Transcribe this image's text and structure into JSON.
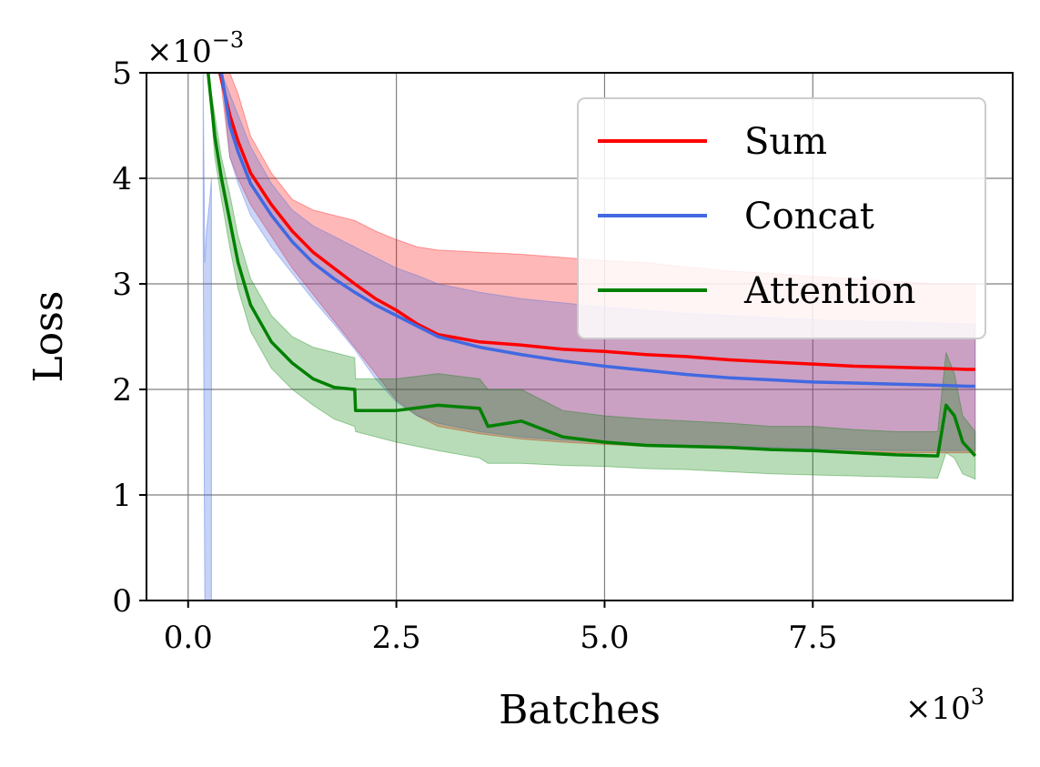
{
  "chart_data": {
    "type": "line",
    "title": "",
    "xlabel": "Batches",
    "ylabel": "Loss",
    "x_scale_label": "×10",
    "x_scale_exp": "3",
    "y_scale_label": "×10",
    "y_scale_exp": "−3",
    "xlim": [
      -0.5,
      9.9
    ],
    "ylim": [
      0,
      5
    ],
    "x_ticks": [
      0.0,
      2.5,
      5.0,
      7.5
    ],
    "x_tick_labels": [
      "0.0",
      "2.5",
      "5.0",
      "7.5"
    ],
    "y_ticks": [
      0,
      1,
      2,
      3,
      4,
      5
    ],
    "y_tick_labels": [
      "0",
      "1",
      "2",
      "3",
      "4",
      "5"
    ],
    "grid": true,
    "legend_position": "top-right",
    "series": [
      {
        "name": "Sum",
        "color": "#ff0000",
        "x": [
          0.38,
          0.5,
          0.6,
          0.75,
          1.0,
          1.25,
          1.5,
          1.75,
          2.0,
          2.25,
          2.5,
          2.75,
          3.0,
          3.5,
          4.0,
          4.5,
          5.0,
          5.5,
          6.0,
          6.5,
          7.0,
          7.5,
          8.0,
          8.5,
          9.0,
          9.35,
          9.45
        ],
        "values": [
          5.0,
          4.6,
          4.35,
          4.05,
          3.75,
          3.5,
          3.3,
          3.15,
          3.0,
          2.86,
          2.75,
          2.62,
          2.52,
          2.45,
          2.42,
          2.38,
          2.36,
          2.33,
          2.31,
          2.28,
          2.26,
          2.24,
          2.22,
          2.21,
          2.2,
          2.19,
          2.19
        ],
        "upper": [
          5.0,
          5.0,
          4.8,
          4.4,
          4.05,
          3.8,
          3.7,
          3.65,
          3.6,
          3.5,
          3.42,
          3.35,
          3.32,
          3.3,
          3.28,
          3.25,
          3.22,
          3.2,
          3.16,
          3.12,
          3.1,
          3.07,
          3.05,
          3.02,
          3.0,
          3.0,
          3.0
        ],
        "lower": [
          5.0,
          4.2,
          4.0,
          3.75,
          3.45,
          3.15,
          2.9,
          2.65,
          2.4,
          2.15,
          1.9,
          1.75,
          1.65,
          1.58,
          1.53,
          1.5,
          1.48,
          1.46,
          1.45,
          1.44,
          1.43,
          1.42,
          1.41,
          1.4,
          1.4,
          1.4,
          1.4
        ]
      },
      {
        "name": "Concat",
        "color": "#4169e1",
        "x": [
          0.4,
          0.5,
          0.6,
          0.75,
          1.0,
          1.25,
          1.5,
          1.75,
          2.0,
          2.25,
          2.5,
          2.75,
          3.0,
          3.5,
          4.0,
          4.5,
          5.0,
          5.5,
          6.0,
          6.5,
          7.0,
          7.5,
          8.0,
          8.5,
          9.0,
          9.35,
          9.45
        ],
        "values": [
          5.0,
          4.5,
          4.25,
          3.95,
          3.65,
          3.4,
          3.2,
          3.05,
          2.92,
          2.8,
          2.7,
          2.6,
          2.5,
          2.4,
          2.33,
          2.27,
          2.22,
          2.18,
          2.14,
          2.11,
          2.09,
          2.07,
          2.06,
          2.05,
          2.04,
          2.03,
          2.03
        ],
        "upper": [
          5.0,
          4.8,
          4.6,
          4.3,
          3.95,
          3.7,
          3.55,
          3.45,
          3.35,
          3.25,
          3.15,
          3.08,
          3.0,
          2.92,
          2.86,
          2.82,
          2.78,
          2.75,
          2.72,
          2.7,
          2.68,
          2.66,
          2.65,
          2.64,
          2.63,
          2.62,
          2.62
        ],
        "lower": [
          5.0,
          4.2,
          3.95,
          3.65,
          3.35,
          3.1,
          2.85,
          2.62,
          2.38,
          2.1,
          1.88,
          1.75,
          1.68,
          1.6,
          1.55,
          1.52,
          1.5,
          1.48,
          1.47,
          1.46,
          1.45,
          1.44,
          1.43,
          1.42,
          1.42,
          1.42,
          1.42
        ]
      },
      {
        "name": "Attention",
        "color": "#008000",
        "x": [
          0.24,
          0.32,
          0.4,
          0.5,
          0.6,
          0.75,
          1.0,
          1.25,
          1.5,
          1.75,
          2.0,
          2.01,
          2.5,
          3.0,
          3.5,
          3.6,
          4.0,
          4.5,
          5.0,
          5.5,
          6.0,
          6.5,
          7.0,
          7.5,
          8.0,
          8.5,
          9.0,
          9.1,
          9.2,
          9.3,
          9.45
        ],
        "values": [
          5.0,
          4.4,
          4.0,
          3.6,
          3.2,
          2.8,
          2.45,
          2.25,
          2.1,
          2.02,
          2.0,
          1.8,
          1.8,
          1.85,
          1.82,
          1.65,
          1.7,
          1.55,
          1.5,
          1.47,
          1.46,
          1.45,
          1.43,
          1.42,
          1.4,
          1.38,
          1.37,
          1.85,
          1.75,
          1.5,
          1.37
        ],
        "upper": [
          5.0,
          4.6,
          4.2,
          3.85,
          3.45,
          3.05,
          2.7,
          2.5,
          2.4,
          2.35,
          2.3,
          2.1,
          2.1,
          2.15,
          2.1,
          2.0,
          2.0,
          1.8,
          1.75,
          1.72,
          1.7,
          1.68,
          1.65,
          1.65,
          1.62,
          1.6,
          1.6,
          2.35,
          2.15,
          1.75,
          1.6
        ],
        "lower": [
          5.0,
          4.2,
          3.8,
          3.35,
          2.95,
          2.55,
          2.2,
          2.0,
          1.85,
          1.72,
          1.65,
          1.6,
          1.5,
          1.42,
          1.35,
          1.3,
          1.3,
          1.28,
          1.27,
          1.25,
          1.24,
          1.22,
          1.2,
          1.19,
          1.18,
          1.17,
          1.16,
          1.4,
          1.35,
          1.2,
          1.15
        ]
      }
    ],
    "early_spike": {
      "series": "Concat",
      "x": [
        0.18,
        0.2,
        0.22,
        0.26,
        0.28
      ],
      "upper": [
        5.0,
        3.2,
        3.5,
        3.8,
        4.0
      ],
      "lower": [
        3.5,
        0.0,
        0.0,
        0.0,
        0.0
      ]
    }
  }
}
